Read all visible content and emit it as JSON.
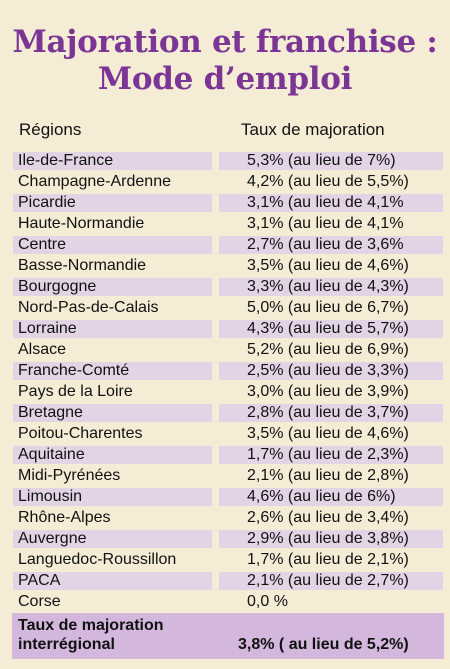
{
  "title": {
    "line1": "Majoration et franchise :",
    "line2": "Mode d’emploi"
  },
  "table": {
    "headers": [
      "Régions",
      "Taux de majoration"
    ],
    "rows": [
      {
        "region": "Ile-de-France",
        "rate": "5,3% (au lieu de 7%)"
      },
      {
        "region": "Champagne-Ardenne",
        "rate": "4,2% (au lieu de 5,5%)"
      },
      {
        "region": "Picardie",
        "rate": "3,1% (au lieu de 4,1%"
      },
      {
        "region": "Haute-Normandie",
        "rate": "3,1% (au lieu de 4,1%"
      },
      {
        "region": "Centre",
        "rate": "2,7% (au lieu de 3,6%"
      },
      {
        "region": "Basse-Normandie",
        "rate": "3,5% (au lieu de 4,6%)"
      },
      {
        "region": "Bourgogne",
        "rate": "3,3% (au lieu de 4,3%)"
      },
      {
        "region": "Nord-Pas-de-Calais",
        "rate": "5,0% (au lieu de 6,7%)"
      },
      {
        "region": "Lorraine",
        "rate": "4,3% (au lieu de 5,7%)"
      },
      {
        "region": "Alsace",
        "rate": "5,2% (au lieu de 6,9%)"
      },
      {
        "region": "Franche-Comté",
        "rate": "2,5% (au lieu de 3,3%)"
      },
      {
        "region": "Pays de la Loire",
        "rate": "3,0% (au lieu de 3,9%)"
      },
      {
        "region": "Bretagne",
        "rate": "2,8% (au lieu de 3,7%)"
      },
      {
        "region": "Poitou-Charentes",
        "rate": "3,5% (au lieu de 4,6%)"
      },
      {
        "region": "Aquitaine",
        "rate": "1,7% (au lieu de 2,3%)"
      },
      {
        "region": "Midi-Pyrénées",
        "rate": "2,1% (au lieu de 2,8%)"
      },
      {
        "region": "Limousin",
        "rate": "4,6% (au lieu de 6%)"
      },
      {
        "region": "Rhône-Alpes",
        "rate": "2,6% (au lieu de 3,4%)"
      },
      {
        "region": "Auvergne",
        "rate": "2,9% (au lieu de 3,8%)"
      },
      {
        "region": "Languedoc-Roussillon",
        "rate": "1,7% (au lieu de 2,1%)"
      },
      {
        "region": "PACA",
        "rate": "2,1% (au lieu de 2,7%)"
      },
      {
        "region": "Corse",
        "rate": "0,0 %"
      }
    ],
    "total": {
      "label_line1": "Taux de majoration",
      "label_line2": "interrégional",
      "value": "3,8% ( au lieu de 5,2%)"
    }
  },
  "colors": {
    "title": "#7b3594",
    "background": "#f4ecd4",
    "row_shade": "#e2d3e5",
    "total_bg": "#d4b7dc"
  }
}
